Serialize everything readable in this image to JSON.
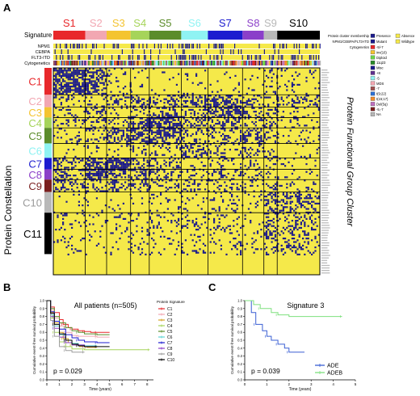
{
  "panel_a": {
    "label": "A",
    "signature_title": "Signature",
    "signatures": [
      {
        "label": "S1",
        "color": "#e8282b"
      },
      {
        "label": "S2",
        "color": "#f2a7b2"
      },
      {
        "label": "S3",
        "color": "#f4c430"
      },
      {
        "label": "S4",
        "color": "#a6d45a"
      },
      {
        "label": "S5",
        "color": "#5b8c2a"
      },
      {
        "label": "S6",
        "color": "#8ff3f3"
      },
      {
        "label": "S7",
        "color": "#1c1ccf"
      },
      {
        "label": "S8",
        "color": "#8b3fc9"
      },
      {
        "label": "S9",
        "color": "#b8b8b8"
      },
      {
        "label": "S10",
        "color": "#000000"
      }
    ],
    "row_annotations": [
      "NPM1",
      "CEBPA",
      "FLT3-ITD",
      "Cytogenetics"
    ],
    "left_axis_label": "Protein Constellation",
    "right_axis_label": "Protein Functional Group Cluster",
    "clusters": [
      {
        "label": "C1",
        "color": "#e8282b"
      },
      {
        "label": "C2",
        "color": "#f2a7b2"
      },
      {
        "label": "C3",
        "color": "#f4c430"
      },
      {
        "label": "C4",
        "color": "#a6d45a"
      },
      {
        "label": "C5",
        "color": "#5b8c2a"
      },
      {
        "label": "C6",
        "color": "#8ff3f3"
      },
      {
        "label": "C7",
        "color": "#1c1ccf"
      },
      {
        "label": "C8",
        "color": "#8b3fc9"
      },
      {
        "label": "C9",
        "color": "#7a1f1f"
      },
      {
        "label": "C10",
        "color": "#b8b8b8"
      },
      {
        "label": "C11",
        "color": "#000000"
      }
    ],
    "legend": {
      "sections": [
        {
          "title": "Protein cluster membership",
          "items": [
            {
              "label": "Presence",
              "color": "#1a1a8c"
            },
            {
              "label": "Absence",
              "color": "#f5e94a"
            }
          ]
        },
        {
          "title": "NPM1/CEBPA/FLT3-ITD",
          "items": [
            {
              "label": "Mutant",
              "color": "#1a1a8c"
            },
            {
              "label": "Wildtype",
              "color": "#f5e94a"
            }
          ]
        },
        {
          "title": "Cytogenetics",
          "items": [
            {
              "label": "-5/-7",
              "color": "#e8282b"
            },
            {
              "label": "inv(16)",
              "color": "#f4c430"
            },
            {
              "label": "Diploid",
              "color": "#6ad44a"
            },
            {
              "label": "11q23",
              "color": "#2a8c2a"
            },
            {
              "label": "Misc",
              "color": "#1a1a8c"
            },
            {
              "label": "+8",
              "color": "#5f2f8f"
            },
            {
              "label": "-5",
              "color": "#8ff3f3"
            },
            {
              "label": "MDS",
              "color": "#f2a7b2"
            },
            {
              "label": "-7",
              "color": "#a05050"
            },
            {
              "label": "t(9;22)",
              "color": "#2a6fd4"
            },
            {
              "label": "t(15;17)",
              "color": "#f28c28"
            },
            {
              "label": "Del(5q)",
              "color": "#c070c0"
            },
            {
              "label": "-5,-7",
              "color": "#7a1f1f"
            },
            {
              "label": "NA",
              "color": "#b8b8b8"
            }
          ]
        }
      ]
    }
  },
  "panel_b": {
    "label": "B",
    "title": "All patients (n=505)",
    "xlabel": "Time (years)",
    "ylabel": "Cumulative event-free survival probability",
    "pvalue": "p = 0.029",
    "legend_title": "Protein Signature",
    "xticks": [
      "0",
      "1",
      "2",
      "3",
      "4",
      "5",
      "6",
      "7",
      "8"
    ],
    "yticks": [
      "0.0",
      "0.1",
      "0.2",
      "0.3",
      "0.4",
      "0.5",
      "0.6",
      "0.7",
      "0.8",
      "0.9",
      "1.0"
    ]
  },
  "panel_c": {
    "label": "C",
    "title": "Signature 3",
    "xlabel": "Time (years)",
    "ylabel": "Cumulative event-free survival probability",
    "pvalue": "p = 0.039",
    "xticks": [
      "0",
      "1",
      "2",
      "3",
      "4",
      "5"
    ],
    "yticks": [
      "0.0",
      "0.1",
      "0.2",
      "0.3",
      "0.4",
      "0.5",
      "0.6",
      "0.7",
      "0.8",
      "0.9",
      "1.0"
    ]
  },
  "chart_data": [
    {
      "type": "line",
      "panel": "B",
      "title": "All patients (n=505)",
      "xlabel": "Time (years)",
      "ylabel": "Cumulative event-free survival probability",
      "xlim": [
        0,
        8.5
      ],
      "ylim": [
        0,
        1
      ],
      "legend_title": "Protein Signature",
      "series": [
        {
          "name": "C1",
          "color": "#e8282b",
          "x": [
            0,
            0.3,
            0.6,
            1,
            1.3,
            1.7,
            2,
            2.5,
            3,
            3.5,
            4,
            5
          ],
          "y": [
            1,
            0.92,
            0.85,
            0.76,
            0.7,
            0.66,
            0.64,
            0.62,
            0.61,
            0.6,
            0.6,
            0.6
          ]
        },
        {
          "name": "C2",
          "color": "#f2a7b2",
          "x": [
            0,
            0.3,
            0.6,
            1,
            1.5,
            2,
            2.5,
            3,
            4,
            5
          ],
          "y": [
            1,
            0.88,
            0.78,
            0.68,
            0.6,
            0.56,
            0.55,
            0.55,
            0.54,
            0.54
          ]
        },
        {
          "name": "C3",
          "color": "#d4a020",
          "x": [
            0,
            0.3,
            0.6,
            1,
            1.3,
            1.7,
            2,
            2.6,
            3.2,
            4
          ],
          "y": [
            1,
            0.85,
            0.72,
            0.6,
            0.52,
            0.47,
            0.44,
            0.42,
            0.41,
            0.41
          ]
        },
        {
          "name": "C4",
          "color": "#a6d45a",
          "x": [
            0,
            0.3,
            0.6,
            1,
            1.5,
            2,
            3,
            4,
            8.2
          ],
          "y": [
            1,
            0.78,
            0.6,
            0.48,
            0.42,
            0.39,
            0.38,
            0.38,
            0.38
          ]
        },
        {
          "name": "C5",
          "color": "#5b8c2a",
          "x": [
            0,
            0.3,
            0.6,
            1,
            1.5,
            2,
            2.5,
            3,
            4,
            5
          ],
          "y": [
            1,
            0.9,
            0.8,
            0.72,
            0.66,
            0.62,
            0.6,
            0.58,
            0.57,
            0.57
          ]
        },
        {
          "name": "C6",
          "color": "#5fd4d4",
          "x": [
            0,
            0.3,
            0.6,
            1,
            1.5,
            2,
            2.5,
            3,
            4
          ],
          "y": [
            1,
            0.82,
            0.68,
            0.57,
            0.5,
            0.46,
            0.44,
            0.43,
            0.43
          ]
        },
        {
          "name": "C7",
          "color": "#1c1ccf",
          "x": [
            0,
            0.3,
            0.6,
            1,
            1.5,
            2,
            2.5,
            3,
            4,
            5
          ],
          "y": [
            1,
            0.86,
            0.74,
            0.64,
            0.57,
            0.53,
            0.5,
            0.48,
            0.47,
            0.47
          ]
        },
        {
          "name": "C8",
          "color": "#8b3fc9",
          "x": [
            0,
            0.3,
            0.6,
            1,
            1.5,
            2,
            3,
            4
          ],
          "y": [
            1,
            0.8,
            0.65,
            0.54,
            0.47,
            0.44,
            0.42,
            0.42
          ]
        },
        {
          "name": "C9",
          "color": "#9e9e9e",
          "x": [
            0,
            0.3,
            0.6,
            1,
            1.5,
            2,
            3
          ],
          "y": [
            1,
            0.75,
            0.55,
            0.42,
            0.37,
            0.35,
            0.35
          ]
        },
        {
          "name": "C10",
          "color": "#000000",
          "x": [
            0,
            0.3,
            0.6,
            1,
            1.5,
            2,
            2.5,
            3,
            4,
            5
          ],
          "y": [
            1,
            0.84,
            0.7,
            0.58,
            0.5,
            0.45,
            0.43,
            0.42,
            0.42,
            0.42
          ]
        }
      ]
    },
    {
      "type": "line",
      "panel": "C",
      "title": "Signature 3",
      "xlabel": "Time (years)",
      "ylabel": "Cumulative event-free survival probability",
      "xlim": [
        0,
        5
      ],
      "ylim": [
        0,
        1
      ],
      "series": [
        {
          "name": "ADE",
          "color": "#3a5fd4",
          "x": [
            0,
            0.3,
            0.5,
            0.8,
            1,
            1.2,
            1.5,
            1.8,
            2,
            2.7
          ],
          "y": [
            1,
            0.85,
            0.7,
            0.62,
            0.55,
            0.5,
            0.45,
            0.4,
            0.35,
            0.35
          ]
        },
        {
          "name": "ADEB",
          "color": "#7ee07e",
          "x": [
            0,
            0.4,
            0.7,
            1.2,
            1.5,
            2,
            4.4
          ],
          "y": [
            1,
            0.95,
            0.9,
            0.85,
            0.82,
            0.8,
            0.8
          ]
        }
      ]
    }
  ]
}
